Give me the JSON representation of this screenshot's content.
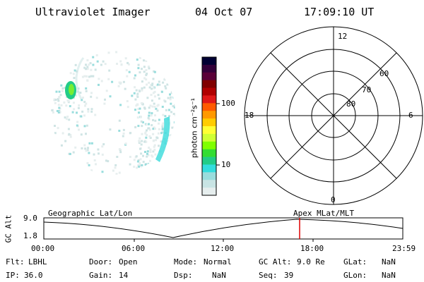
{
  "header": {
    "instrument": "Ultraviolet Imager",
    "date": "04 Oct 07",
    "time": "17:09:10 UT"
  },
  "colorbar": {
    "unit_label": "photon cm⁻²s⁻¹",
    "tick_labels": [
      "100",
      "10"
    ],
    "colors": [
      "#000033",
      "#33003a",
      "#5a0038",
      "#800000",
      "#b00000",
      "#e01818",
      "#ff5a00",
      "#ff9900",
      "#ffcc00",
      "#ffff33",
      "#cfff33",
      "#7fff00",
      "#33dd33",
      "#22cc88",
      "#33dddd",
      "#99dddd",
      "#c8e4e4",
      "#e6eeee"
    ]
  },
  "polar": {
    "lat_labels": [
      "60",
      "70",
      "80"
    ],
    "mlt_labels": {
      "top": "12",
      "left": "18",
      "right": "6",
      "bottom": "0"
    }
  },
  "timeline": {
    "ylabel": "GC Alt",
    "ymax": "9.0",
    "ymin": "1.8",
    "left_title": "Geographic Lat/Lon",
    "right_title": "Apex  MLat/MLT",
    "x_ticks": [
      "00:00",
      "06:00",
      "12:00",
      "18:00",
      "23:59"
    ],
    "marker_color": "#dd0000"
  },
  "footer": {
    "flt_label": "Flt:",
    "flt_value": "LBHL",
    "ip_label": "IP:",
    "ip_value": "36.0",
    "door_label": "Door:",
    "door_value": "Open",
    "gain_label": "Gain:",
    "gain_value": "14",
    "mode_label": "Mode:",
    "mode_value": "Normal",
    "dsp_label": "Dsp:",
    "dsp_value": "NaN",
    "gcalt_label": "GC Alt:",
    "gcalt_value": "9.0 Re",
    "seq_label": "Seq:",
    "seq_value": "39",
    "glat_label": "GLat:",
    "glat_value": "NaN",
    "glon_label": "GLon:",
    "glon_value": "NaN"
  }
}
